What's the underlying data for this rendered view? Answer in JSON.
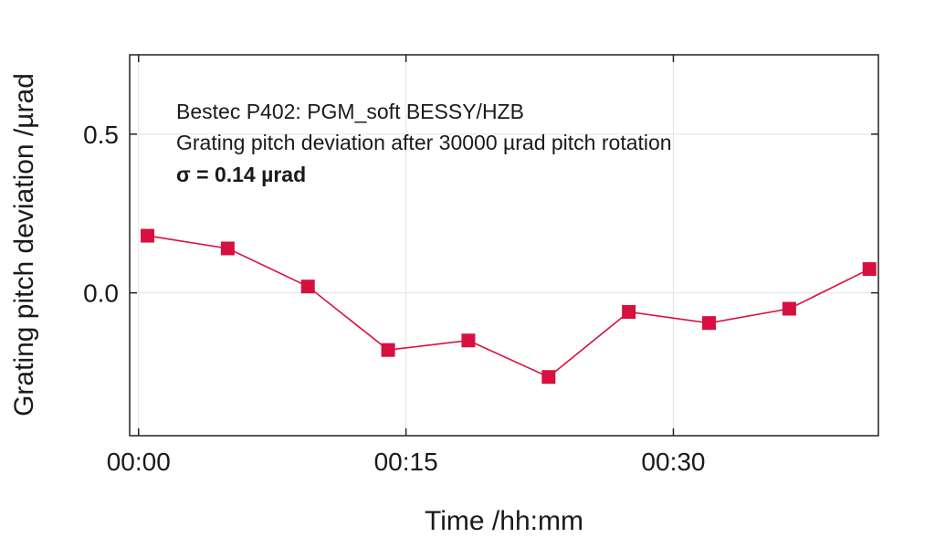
{
  "chart_data": {
    "type": "line",
    "title": "",
    "xlabel": "Time /hh:mm",
    "ylabel": "Grating pitch deviation /µrad",
    "x_tick_labels": [
      "00:00",
      "00:15",
      "00:30"
    ],
    "x_tick_minutes": [
      0,
      15,
      30
    ],
    "xlim_minutes": [
      -0.5,
      41.5
    ],
    "y_ticks": [
      0.0,
      0.5
    ],
    "y_tick_labels": [
      "0.0",
      "0.5"
    ],
    "ylim": [
      -0.45,
      0.75
    ],
    "grid": true,
    "annotations": [
      "Bestec P402: PGM_soft BESSY/HZB",
      "Grating pitch deviation after 30000 µrad pitch rotation",
      "σ = 0.14 µrad"
    ],
    "series": [
      {
        "x_minutes": [
          0.5,
          5.0,
          9.5,
          14.0,
          18.5,
          23.0,
          27.5,
          32.0,
          36.5,
          41.0
        ],
        "values": [
          0.18,
          0.14,
          0.02,
          -0.18,
          -0.15,
          -0.265,
          -0.06,
          -0.095,
          -0.05,
          0.075
        ],
        "color": "#d7103f"
      }
    ]
  }
}
